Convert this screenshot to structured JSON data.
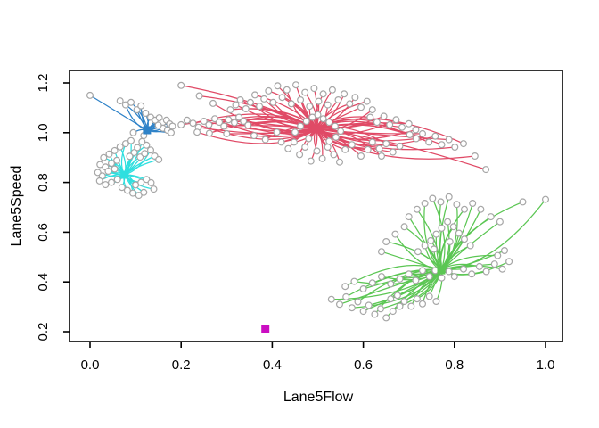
{
  "chart_data": {
    "type": "scatter",
    "variant": "cluster-star-plot",
    "title": "",
    "xlabel": "Lane5Flow",
    "ylabel": "Lane5Speed",
    "xlim": [
      -0.04,
      1.04
    ],
    "ylim": [
      0.18,
      1.23
    ],
    "grid": false,
    "legend": "none",
    "background": "#ffffff",
    "box_color": "#000000",
    "x_ticks": {
      "values": [
        0.0,
        0.2,
        0.4,
        0.6,
        0.8,
        1.0
      ],
      "labels": [
        "0.0",
        "0.2",
        "0.4",
        "0.6",
        "0.8",
        "1.0"
      ]
    },
    "y_ticks": {
      "values": [
        0.2,
        0.4,
        0.6,
        0.8,
        1.0,
        1.2
      ],
      "labels": [
        "0.2",
        "0.4",
        "0.6",
        "0.8",
        "1.0",
        "1.2"
      ]
    },
    "point_marker": {
      "shape": "open-circle",
      "stroke": "#a6a6a6",
      "fill": "#ffffff"
    },
    "centroid_marker": {
      "shape": "filled-square"
    },
    "clusters": [
      {
        "name": "cluster-blue",
        "color": "#2e82c8",
        "centroid": [
          0.125,
          1.01
        ],
        "points": [
          [
            0.0,
            1.15
          ],
          [
            0.066,
            1.128
          ],
          [
            0.078,
            1.112
          ],
          [
            0.09,
            1.122
          ],
          [
            0.103,
            1.092
          ],
          [
            0.112,
            1.108
          ],
          [
            0.122,
            1.078
          ],
          [
            0.133,
            1.062
          ],
          [
            0.143,
            1.05
          ],
          [
            0.152,
            1.06
          ],
          [
            0.16,
            1.042
          ],
          [
            0.168,
            1.05
          ],
          [
            0.175,
            1.035
          ],
          [
            0.181,
            1.026
          ],
          [
            0.16,
            1.018
          ],
          [
            0.15,
            1.03
          ],
          [
            0.17,
            1.01
          ],
          [
            0.178,
            1.0
          ],
          [
            0.118,
            0.988
          ],
          [
            0.095,
            1.0
          ]
        ]
      },
      {
        "name": "cluster-cyan",
        "color": "#2edfdf",
        "centroid": [
          0.076,
          0.831
        ],
        "points": [
          [
            0.03,
            0.9
          ],
          [
            0.042,
            0.914
          ],
          [
            0.054,
            0.928
          ],
          [
            0.066,
            0.943
          ],
          [
            0.078,
            0.956
          ],
          [
            0.09,
            0.968
          ],
          [
            0.104,
            0.94
          ],
          [
            0.097,
            0.92
          ],
          [
            0.087,
            0.905
          ],
          [
            0.11,
            0.902
          ],
          [
            0.12,
            0.916
          ],
          [
            0.114,
            0.964
          ],
          [
            0.124,
            0.95
          ],
          [
            0.133,
            0.93
          ],
          [
            0.142,
            0.906
          ],
          [
            0.151,
            0.892
          ],
          [
            0.022,
            0.872
          ],
          [
            0.034,
            0.862
          ],
          [
            0.047,
            0.877
          ],
          [
            0.059,
            0.889
          ],
          [
            0.017,
            0.84
          ],
          [
            0.027,
            0.826
          ],
          [
            0.04,
            0.845
          ],
          [
            0.054,
            0.854
          ],
          [
            0.021,
            0.806
          ],
          [
            0.034,
            0.791
          ],
          [
            0.047,
            0.8
          ],
          [
            0.06,
            0.812
          ],
          [
            0.07,
            0.78
          ],
          [
            0.082,
            0.768
          ],
          [
            0.094,
            0.757
          ],
          [
            0.107,
            0.748
          ],
          [
            0.118,
            0.76
          ],
          [
            0.1,
            0.79
          ],
          [
            0.112,
            0.8
          ],
          [
            0.124,
            0.812
          ],
          [
            0.134,
            0.799
          ],
          [
            0.14,
            0.773
          ]
        ]
      },
      {
        "name": "cluster-red",
        "color": "#e04a66",
        "centroid": [
          0.497,
          1.014
        ],
        "points": [
          [
            0.2,
            1.032
          ],
          [
            0.213,
            1.05
          ],
          [
            0.226,
            1.038
          ],
          [
            0.238,
            1.022
          ],
          [
            0.25,
            1.046
          ],
          [
            0.261,
            1.032
          ],
          [
            0.274,
            1.056
          ],
          [
            0.284,
            1.042
          ],
          [
            0.294,
            1.026
          ],
          [
            0.304,
            1.052
          ],
          [
            0.317,
            1.04
          ],
          [
            0.327,
            1.062
          ],
          [
            0.337,
            1.046
          ],
          [
            0.347,
            1.03
          ],
          [
            0.235,
            1.002
          ],
          [
            0.262,
            0.998
          ],
          [
            0.3,
            0.996
          ],
          [
            0.36,
            0.988
          ],
          [
            0.385,
            0.972
          ],
          [
            0.41,
            1.002
          ],
          [
            0.2,
            1.19
          ],
          [
            0.24,
            1.148
          ],
          [
            0.27,
            1.118
          ],
          [
            0.308,
            1.092
          ],
          [
            0.32,
            1.112
          ],
          [
            0.33,
            1.132
          ],
          [
            0.342,
            1.096
          ],
          [
            0.352,
            1.122
          ],
          [
            0.362,
            1.152
          ],
          [
            0.372,
            1.106
          ],
          [
            0.382,
            1.136
          ],
          [
            0.392,
            1.168
          ],
          [
            0.402,
            1.122
          ],
          [
            0.412,
            1.188
          ],
          [
            0.422,
            1.142
          ],
          [
            0.432,
            1.172
          ],
          [
            0.442,
            1.116
          ],
          [
            0.452,
            1.192
          ],
          [
            0.462,
            1.132
          ],
          [
            0.472,
            1.162
          ],
          [
            0.482,
            1.106
          ],
          [
            0.492,
            1.178
          ],
          [
            0.502,
            1.126
          ],
          [
            0.512,
            1.156
          ],
          [
            0.522,
            1.112
          ],
          [
            0.532,
            1.172
          ],
          [
            0.545,
            1.132
          ],
          [
            0.558,
            1.156
          ],
          [
            0.57,
            1.116
          ],
          [
            0.582,
            1.142
          ],
          [
            0.595,
            1.102
          ],
          [
            0.608,
            1.126
          ],
          [
            0.62,
            1.092
          ],
          [
            0.615,
            1.062
          ],
          [
            0.63,
            1.042
          ],
          [
            0.645,
            1.066
          ],
          [
            0.658,
            1.032
          ],
          [
            0.672,
            1.052
          ],
          [
            0.685,
            1.022
          ],
          [
            0.7,
            1.036
          ],
          [
            0.715,
            1.012
          ],
          [
            0.702,
            0.992
          ],
          [
            0.716,
            0.976
          ],
          [
            0.73,
            0.996
          ],
          [
            0.744,
            0.962
          ],
          [
            0.758,
            0.986
          ],
          [
            0.772,
            0.952
          ],
          [
            0.788,
            0.972
          ],
          [
            0.801,
            0.942
          ],
          [
            0.82,
            0.956
          ],
          [
            0.845,
            0.906
          ],
          [
            0.869,
            0.852
          ],
          [
            0.62,
            0.962
          ],
          [
            0.635,
            0.936
          ],
          [
            0.65,
            0.956
          ],
          [
            0.665,
            0.922
          ],
          [
            0.68,
            0.946
          ],
          [
            0.64,
            0.906
          ],
          [
            0.61,
            0.932
          ],
          [
            0.595,
            0.906
          ],
          [
            0.42,
            0.962
          ],
          [
            0.435,
            0.936
          ],
          [
            0.448,
            0.962
          ],
          [
            0.46,
            0.912
          ],
          [
            0.472,
            0.942
          ],
          [
            0.485,
            0.886
          ],
          [
            0.498,
            0.926
          ],
          [
            0.51,
            0.896
          ],
          [
            0.522,
            0.942
          ],
          [
            0.535,
            0.912
          ],
          [
            0.548,
            0.882
          ],
          [
            0.56,
            0.932
          ],
          [
            0.575,
            0.952
          ],
          [
            0.45,
            1.002
          ],
          [
            0.462,
            1.026
          ],
          [
            0.475,
            1.046
          ],
          [
            0.488,
            1.062
          ],
          [
            0.5,
            1.072
          ],
          [
            0.512,
            1.056
          ],
          [
            0.525,
            1.042
          ],
          [
            0.538,
            1.026
          ],
          [
            0.55,
            1.006
          ],
          [
            0.54,
            0.982
          ],
          [
            0.525,
            0.966
          ],
          [
            0.48,
            0.976
          ]
        ]
      },
      {
        "name": "cluster-green",
        "color": "#5bc653",
        "centroid": [
          0.771,
          0.447
        ],
        "points": [
          [
            0.53,
            0.33
          ],
          [
            0.548,
            0.31
          ],
          [
            0.562,
            0.34
          ],
          [
            0.575,
            0.296
          ],
          [
            0.588,
            0.32
          ],
          [
            0.6,
            0.282
          ],
          [
            0.612,
            0.306
          ],
          [
            0.625,
            0.27
          ],
          [
            0.638,
            0.292
          ],
          [
            0.65,
            0.256
          ],
          [
            0.665,
            0.282
          ],
          [
            0.68,
            0.302
          ],
          [
            0.66,
            0.332
          ],
          [
            0.675,
            0.346
          ],
          [
            0.69,
            0.322
          ],
          [
            0.705,
            0.302
          ],
          [
            0.718,
            0.332
          ],
          [
            0.73,
            0.312
          ],
          [
            0.745,
            0.342
          ],
          [
            0.76,
            0.322
          ],
          [
            0.56,
            0.382
          ],
          [
            0.58,
            0.402
          ],
          [
            0.6,
            0.372
          ],
          [
            0.62,
            0.396
          ],
          [
            0.64,
            0.422
          ],
          [
            0.66,
            0.392
          ],
          [
            0.68,
            0.412
          ],
          [
            0.7,
            0.432
          ],
          [
            0.715,
            0.406
          ],
          [
            0.73,
            0.446
          ],
          [
            0.745,
            0.422
          ],
          [
            0.758,
            0.446
          ],
          [
            0.772,
            0.416
          ],
          [
            0.788,
            0.442
          ],
          [
            0.8,
            0.422
          ],
          [
            0.82,
            0.452
          ],
          [
            0.838,
            0.432
          ],
          [
            0.855,
            0.462
          ],
          [
            0.87,
            0.442
          ],
          [
            0.888,
            0.472
          ],
          [
            0.905,
            0.452
          ],
          [
            0.92,
            0.482
          ],
          [
            0.895,
            0.506
          ],
          [
            0.91,
            0.526
          ],
          [
            0.72,
            0.522
          ],
          [
            0.735,
            0.546
          ],
          [
            0.748,
            0.566
          ],
          [
            0.76,
            0.592
          ],
          [
            0.772,
            0.616
          ],
          [
            0.785,
            0.642
          ],
          [
            0.798,
            0.622
          ],
          [
            0.81,
            0.596
          ],
          [
            0.822,
            0.572
          ],
          [
            0.835,
            0.546
          ],
          [
            0.79,
            0.562
          ],
          [
            0.755,
            0.532
          ],
          [
            0.7,
            0.662
          ],
          [
            0.718,
            0.692
          ],
          [
            0.735,
            0.716
          ],
          [
            0.752,
            0.736
          ],
          [
            0.77,
            0.722
          ],
          [
            0.788,
            0.742
          ],
          [
            0.805,
            0.712
          ],
          [
            0.822,
            0.692
          ],
          [
            0.84,
            0.716
          ],
          [
            0.858,
            0.692
          ],
          [
            0.95,
            0.722
          ],
          [
            1.0,
            0.732
          ],
          [
            0.88,
            0.662
          ],
          [
            0.9,
            0.642
          ],
          [
            0.65,
            0.562
          ],
          [
            0.67,
            0.592
          ],
          [
            0.69,
            0.622
          ],
          [
            0.64,
            0.522
          ]
        ]
      },
      {
        "name": "cluster-magenta",
        "color": "#cb0ec2",
        "centroid": [
          0.385,
          0.21
        ],
        "points": []
      }
    ]
  }
}
